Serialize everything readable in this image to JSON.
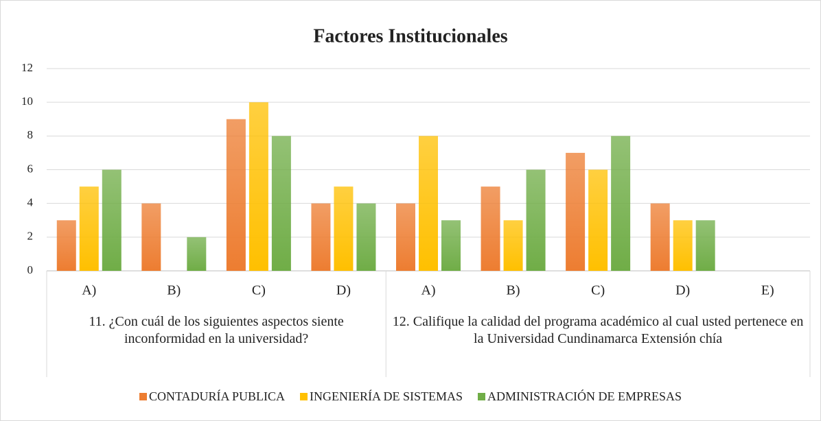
{
  "chart_data": {
    "type": "bar",
    "title": "Factores Institucionales",
    "groups": [
      {
        "label": "11. ¿Con cuál de los siguientes aspectos siente inconformidad en la universidad?",
        "categories": [
          "A)",
          "B)",
          "C)",
          "D)"
        ]
      },
      {
        "label": "12. Califique la calidad del programa académico al cual usted pertenece en la Universidad Cundinamarca Extensión chía",
        "categories": [
          "A)",
          "B)",
          "C)",
          "D)",
          "E)"
        ]
      }
    ],
    "series": [
      {
        "name": "CONTADURÍA PUBLICA",
        "color": "#ed7d31",
        "values": [
          3,
          4,
          9,
          4,
          4,
          5,
          7,
          4,
          null
        ]
      },
      {
        "name": "INGENIERÍA DE SISTEMAS",
        "color": "#ffc000",
        "values": [
          5,
          0,
          10,
          5,
          8,
          3,
          6,
          3,
          null
        ]
      },
      {
        "name": "ADMINISTRACIÓN DE EMPRESAS",
        "color": "#70ad47",
        "values": [
          6,
          2,
          8,
          4,
          3,
          6,
          8,
          3,
          null
        ]
      }
    ],
    "ylim": [
      0,
      12
    ],
    "yticks": [
      0,
      2,
      4,
      6,
      8,
      10,
      12
    ],
    "grid": true,
    "legend": "bottom"
  }
}
